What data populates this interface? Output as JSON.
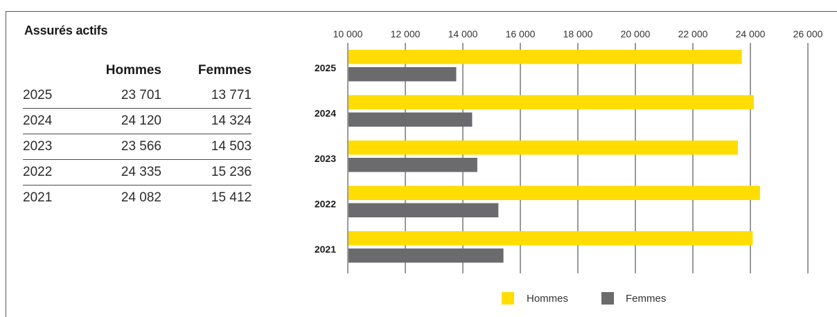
{
  "title": "Assurés actifs",
  "table": {
    "headers": [
      "",
      "Hommes",
      "Femmes"
    ],
    "rows": [
      {
        "year": "2025",
        "hommes": "23 701",
        "femmes": "13 771"
      },
      {
        "year": "2024",
        "hommes": "24 120",
        "femmes": "14 324"
      },
      {
        "year": "2023",
        "hommes": "23 566",
        "femmes": "14 503"
      },
      {
        "year": "2022",
        "hommes": "24 335",
        "femmes": "15 236"
      },
      {
        "year": "2021",
        "hommes": "24 082",
        "femmes": "15 412"
      }
    ]
  },
  "colors": {
    "hommes": "#FFDD00",
    "femmes": "#6B6B6E",
    "grid": "#333333"
  },
  "chart_data": {
    "type": "bar",
    "orientation": "horizontal",
    "categories": [
      "2025",
      "2024",
      "2023",
      "2022",
      "2021"
    ],
    "series": [
      {
        "name": "Hommes",
        "values": [
          23701,
          24120,
          23566,
          24335,
          24082
        ]
      },
      {
        "name": "Femmes",
        "values": [
          13771,
          14324,
          14503,
          15236,
          15412
        ]
      }
    ],
    "xlim": [
      10000,
      26000
    ],
    "xticks": [
      10000,
      12000,
      14000,
      16000,
      18000,
      20000,
      22000,
      24000,
      26000
    ],
    "xtick_labels": [
      "10 000",
      "12 000",
      "14 000",
      "16 000",
      "18 000",
      "20 000",
      "22 000",
      "24 000",
      "26 000"
    ],
    "xaxis_position": "top",
    "grid": true,
    "legend_position": "bottom"
  },
  "legend": {
    "items": [
      {
        "label": "Hommes"
      },
      {
        "label": "Femmes"
      }
    ]
  }
}
